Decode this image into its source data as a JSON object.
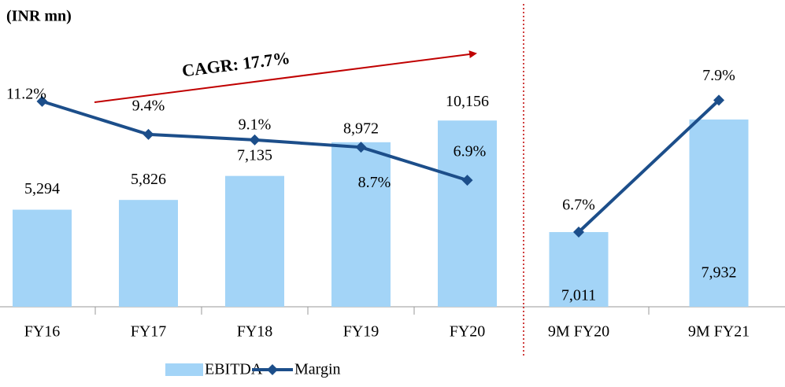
{
  "chart_data": [
    {
      "type": "bar",
      "unit_label": "(INR mn)",
      "annotation": "CAGR: 17.7%",
      "categories": [
        "FY16",
        "FY17",
        "FY18",
        "FY19",
        "FY20"
      ],
      "series": [
        {
          "name": "EBITDA",
          "color": "#a3d4f7",
          "values": [
            5294,
            5826,
            7135,
            8972,
            10156
          ],
          "value_labels": [
            "5,294",
            "5,826",
            "7,135",
            "8,972",
            "10,156"
          ]
        },
        {
          "name": "Margin",
          "color": "#1c4e8a",
          "axis": "y2",
          "values": [
            11.2,
            9.4,
            9.1,
            8.7,
            6.9
          ],
          "value_labels": [
            "11.2%",
            "9.4%",
            "9.1%",
            "8.7%",
            "6.9%"
          ]
        }
      ],
      "ylim": [
        0,
        16000
      ],
      "y2lim": [
        0,
        16
      ]
    },
    {
      "type": "bar",
      "categories": [
        "9M FY20",
        "9M FY21"
      ],
      "series": [
        {
          "color": "#a3d4f7",
          "values": [
            7011,
            7932
          ],
          "value_labels": [
            "7,011",
            "7,932"
          ]
        },
        {
          "color": "#1c4e8a",
          "axis": "y2",
          "values": [
            6.7,
            7.9
          ],
          "value_labels": [
            "6.7%",
            "7.9%"
          ]
        }
      ],
      "ylim": [
        6400,
        8800
      ],
      "y2lim": [
        6.02,
        8.69
      ]
    }
  ]
}
